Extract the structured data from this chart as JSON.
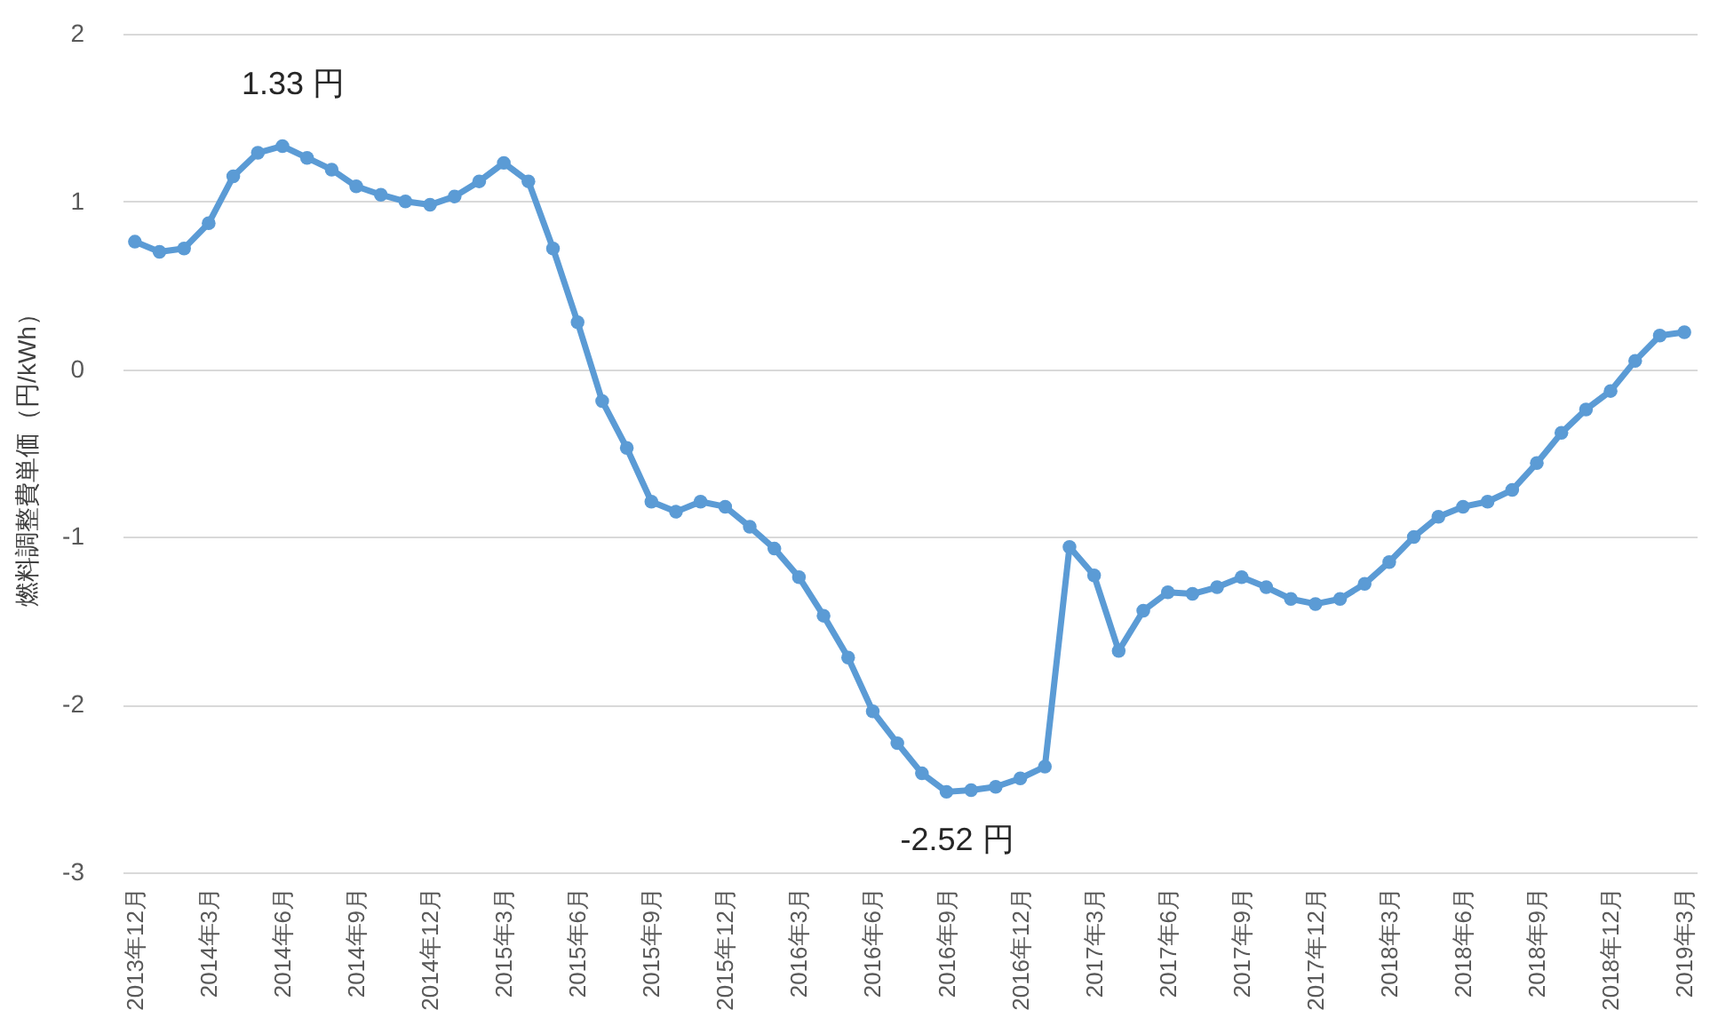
{
  "chart_data": {
    "type": "line",
    "ylabel": "燃料調整費単価（円/kWh）",
    "categories": [
      "2013年12月",
      null,
      null,
      "2014年3月",
      null,
      null,
      "2014年6月",
      null,
      null,
      "2014年9月",
      null,
      null,
      "2014年12月",
      null,
      null,
      "2015年3月",
      null,
      null,
      "2015年6月",
      null,
      null,
      "2015年9月",
      null,
      null,
      "2015年12月",
      null,
      null,
      "2016年3月",
      null,
      null,
      "2016年6月",
      null,
      null,
      "2016年9月",
      null,
      null,
      "2016年12月",
      null,
      null,
      "2017年3月",
      null,
      null,
      "2017年6月",
      null,
      null,
      "2017年9月",
      null,
      null,
      "2017年12月",
      null,
      null,
      "2018年3月",
      null,
      null,
      "2018年6月",
      null,
      null,
      "2018年9月",
      null,
      null,
      "2018年12月",
      null,
      null,
      "2019年3月"
    ],
    "series": [
      {
        "color": "#5b9bd5",
        "values": [
          0.76,
          0.7,
          0.72,
          0.87,
          1.15,
          1.29,
          1.33,
          1.26,
          1.19,
          1.09,
          1.04,
          1.0,
          0.98,
          1.03,
          1.12,
          1.23,
          1.12,
          0.72,
          0.28,
          -0.19,
          -0.47,
          -0.79,
          -0.85,
          -0.79,
          -0.82,
          -0.94,
          -1.07,
          -1.24,
          -1.47,
          -1.72,
          -2.04,
          -2.23,
          -2.41,
          -2.52,
          -2.51,
          -2.49,
          -2.44,
          -2.37,
          -1.06,
          -1.23,
          -1.68,
          -1.44,
          -1.33,
          -1.34,
          -1.3,
          -1.24,
          -1.3,
          -1.37,
          -1.4,
          -1.37,
          -1.28,
          -1.15,
          -1.0,
          -0.88,
          -0.82,
          -0.79,
          -0.72,
          -0.56,
          -0.38,
          -0.24,
          -0.13,
          0.05,
          0.2,
          0.22
        ]
      }
    ],
    "ylim": [
      -3,
      2
    ],
    "yticks": [
      -3,
      -2,
      -1,
      0,
      1,
      2
    ],
    "grid": "y",
    "marker": "circle",
    "line_style": "solid",
    "annotations": [
      {
        "text": "1.33 円",
        "x": "2014年6月",
        "y": 1.33
      },
      {
        "text": "-2.52 円",
        "x": "2016年9月",
        "y": -2.52
      }
    ]
  }
}
